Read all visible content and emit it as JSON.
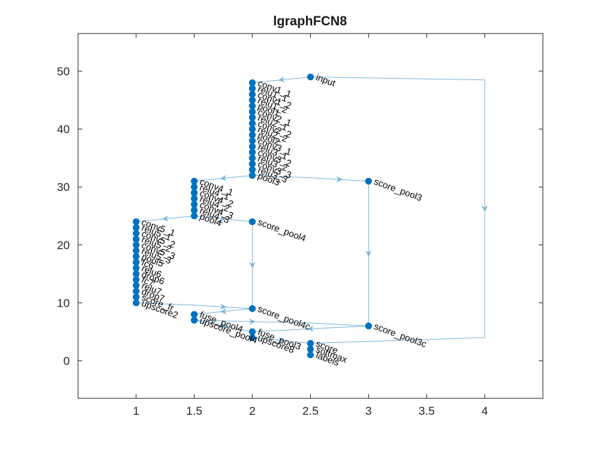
{
  "title": "lgraphFCN8",
  "colors": {
    "edge": "#7ab6dc",
    "node": "#0072bd",
    "axis": "#262626"
  },
  "axes": {
    "xlim": [
      0.5,
      4.5
    ],
    "ylim": [
      -6.5,
      56.5
    ],
    "xticks": [
      1,
      1.5,
      2,
      2.5,
      3,
      3.5,
      4
    ],
    "yticks": [
      0,
      10,
      20,
      30,
      40,
      50
    ],
    "xtick_labels": [
      "1",
      "1.5",
      "2",
      "2.5",
      "3",
      "3.5",
      "4"
    ],
    "ytick_labels": [
      "0",
      "10",
      "20",
      "30",
      "40",
      "50"
    ]
  },
  "chart_data": {
    "type": "layered-graph",
    "nodes": [
      {
        "name": "input",
        "x": 2.5,
        "y": 49
      },
      {
        "name": "conv1_1",
        "x": 2,
        "y": 48
      },
      {
        "name": "relu1_1",
        "x": 2,
        "y": 47
      },
      {
        "name": "conv1_2",
        "x": 2,
        "y": 46
      },
      {
        "name": "relu1_2",
        "x": 2,
        "y": 45
      },
      {
        "name": "pool1",
        "x": 2,
        "y": 44
      },
      {
        "name": "conv2_1",
        "x": 2,
        "y": 43
      },
      {
        "name": "relu2_1",
        "x": 2,
        "y": 42
      },
      {
        "name": "conv2_2",
        "x": 2,
        "y": 41
      },
      {
        "name": "relu2_2",
        "x": 2,
        "y": 40
      },
      {
        "name": "pool2",
        "x": 2,
        "y": 39
      },
      {
        "name": "conv3_1",
        "x": 2,
        "y": 38
      },
      {
        "name": "relu3_1",
        "x": 2,
        "y": 37
      },
      {
        "name": "conv3_2",
        "x": 2,
        "y": 36
      },
      {
        "name": "relu3_2",
        "x": 2,
        "y": 35
      },
      {
        "name": "conv3_3",
        "x": 2,
        "y": 34
      },
      {
        "name": "relu3_3",
        "x": 2,
        "y": 33
      },
      {
        "name": "pool3",
        "x": 2,
        "y": 32
      },
      {
        "name": "score_pool3",
        "x": 3,
        "y": 31
      },
      {
        "name": "conv4_1",
        "x": 1.5,
        "y": 31
      },
      {
        "name": "relu4_1",
        "x": 1.5,
        "y": 30
      },
      {
        "name": "conv4_2",
        "x": 1.5,
        "y": 29
      },
      {
        "name": "relu4_2",
        "x": 1.5,
        "y": 28
      },
      {
        "name": "conv4_3",
        "x": 1.5,
        "y": 27
      },
      {
        "name": "relu4_3",
        "x": 1.5,
        "y": 26
      },
      {
        "name": "pool4",
        "x": 1.5,
        "y": 25
      },
      {
        "name": "score_pool4",
        "x": 2,
        "y": 24
      },
      {
        "name": "conv5_1",
        "x": 1,
        "y": 24
      },
      {
        "name": "relu5_1",
        "x": 1,
        "y": 23
      },
      {
        "name": "conv5_2",
        "x": 1,
        "y": 22
      },
      {
        "name": "relu5_2",
        "x": 1,
        "y": 21
      },
      {
        "name": "conv5_3",
        "x": 1,
        "y": 20
      },
      {
        "name": "relu5_3",
        "x": 1,
        "y": 19
      },
      {
        "name": "pool5",
        "x": 1,
        "y": 18
      },
      {
        "name": "fc6",
        "x": 1,
        "y": 17
      },
      {
        "name": "relu6",
        "x": 1,
        "y": 16
      },
      {
        "name": "drop6",
        "x": 1,
        "y": 15
      },
      {
        "name": "fc7",
        "x": 1,
        "y": 14
      },
      {
        "name": "relu7",
        "x": 1,
        "y": 13
      },
      {
        "name": "drop7",
        "x": 1,
        "y": 12
      },
      {
        "name": "score_fr",
        "x": 1,
        "y": 11
      },
      {
        "name": "upscore2",
        "x": 1,
        "y": 10
      },
      {
        "name": "score_pool4c",
        "x": 2,
        "y": 9
      },
      {
        "name": "fuse_pool4",
        "x": 1.5,
        "y": 8
      },
      {
        "name": "upscore_pool4",
        "x": 1.5,
        "y": 7
      },
      {
        "name": "score_pool3c",
        "x": 3,
        "y": 6
      },
      {
        "name": "fuse_pool3",
        "x": 2,
        "y": 5
      },
      {
        "name": "upscore8",
        "x": 2,
        "y": 4
      },
      {
        "name": "score",
        "x": 2.5,
        "y": 3
      },
      {
        "name": "softmax",
        "x": 2.5,
        "y": 2
      },
      {
        "name": "labels",
        "x": 2.5,
        "y": 1
      }
    ],
    "edges": [
      {
        "points": [
          [
            2.5,
            49
          ],
          [
            2,
            48
          ]
        ]
      },
      {
        "points": [
          [
            2,
            48
          ],
          [
            2,
            32
          ]
        ]
      },
      {
        "points": [
          [
            2,
            32
          ],
          [
            2.5,
            31.6
          ],
          [
            3,
            31
          ]
        ]
      },
      {
        "points": [
          [
            2,
            32
          ],
          [
            1.5,
            31
          ]
        ]
      },
      {
        "points": [
          [
            1.5,
            31
          ],
          [
            1.5,
            25
          ]
        ]
      },
      {
        "points": [
          [
            1.5,
            25
          ],
          [
            2,
            24
          ]
        ]
      },
      {
        "points": [
          [
            1.5,
            25
          ],
          [
            1,
            24
          ]
        ]
      },
      {
        "points": [
          [
            1,
            24
          ],
          [
            1,
            10
          ]
        ]
      },
      {
        "points": [
          [
            2,
            24
          ],
          [
            2,
            9
          ]
        ]
      },
      {
        "points": [
          [
            1,
            10
          ],
          [
            1.5,
            9.6
          ],
          [
            2,
            9
          ]
        ]
      },
      {
        "points": [
          [
            2,
            9
          ],
          [
            1.5,
            8
          ]
        ]
      },
      {
        "points": [
          [
            1.5,
            8
          ],
          [
            1.5,
            7
          ]
        ]
      },
      {
        "points": [
          [
            3,
            31
          ],
          [
            3,
            6
          ]
        ]
      },
      {
        "points": [
          [
            1.5,
            7
          ],
          [
            2.5,
            6.5
          ],
          [
            3,
            6
          ]
        ]
      },
      {
        "points": [
          [
            3,
            6
          ],
          [
            2,
            5
          ]
        ]
      },
      {
        "points": [
          [
            1.5,
            7
          ],
          [
            2,
            5
          ]
        ]
      },
      {
        "points": [
          [
            2,
            5
          ],
          [
            2,
            4
          ]
        ]
      },
      {
        "points": [
          [
            2.5,
            49
          ],
          [
            4,
            48.5
          ],
          [
            4,
            4
          ],
          [
            2.5,
            3
          ]
        ]
      },
      {
        "points": [
          [
            2,
            4
          ],
          [
            2.5,
            3
          ]
        ]
      },
      {
        "points": [
          [
            2.5,
            3
          ],
          [
            2.5,
            2
          ]
        ]
      },
      {
        "points": [
          [
            2.5,
            2
          ],
          [
            2.5,
            1
          ]
        ]
      }
    ]
  }
}
